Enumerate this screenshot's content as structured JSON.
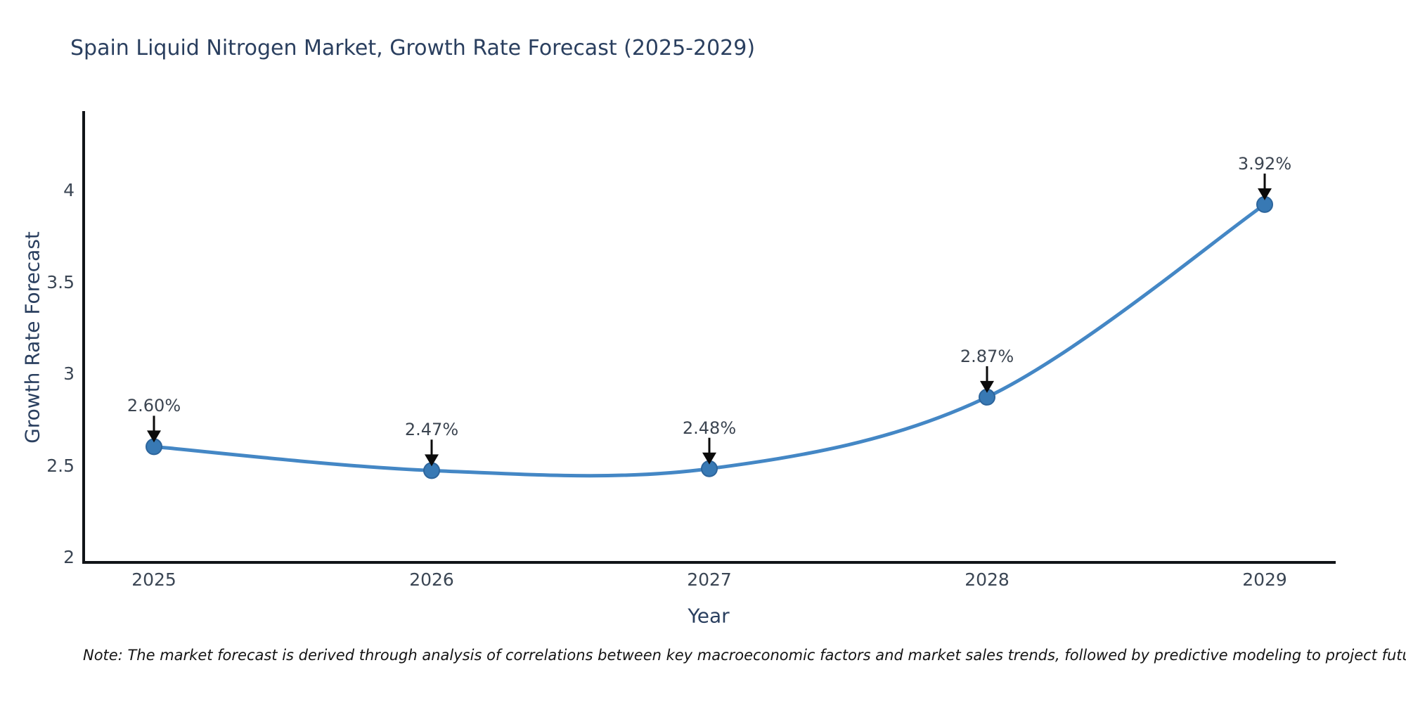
{
  "title": "Spain Liquid Nitrogen Market, Growth Rate Forecast (2025-2029)",
  "note": "Note: The market forecast is derived through analysis of correlations between key macroeconomic factors and market sales trends, followed by predictive modeling to project future sales",
  "chart_data": {
    "type": "line",
    "title": "Spain Liquid Nitrogen Market, Growth Rate Forecast (2025-2029)",
    "xlabel": "Year",
    "ylabel": "Growth Rate Forecast",
    "categories": [
      "2025",
      "2026",
      "2027",
      "2028",
      "2029"
    ],
    "series": [
      {
        "name": "Growth Rate Forecast",
        "values": [
          2.6,
          2.47,
          2.48,
          2.87,
          3.92
        ]
      }
    ],
    "point_labels": [
      "2.60%",
      "2.47%",
      "2.48%",
      "2.87%",
      "3.92%"
    ],
    "y_ticks": [
      2,
      2.5,
      3,
      3.5,
      4
    ],
    "ylim": [
      2,
      4.45
    ],
    "grid": false,
    "legend": false,
    "line_shape": "spline",
    "annotations_have_arrows": true,
    "colors": {
      "line": "#4487c5",
      "marker_fill": "#3879b4",
      "marker_edge": "#2d659c",
      "arrow": "#0b0b0b",
      "axis_line": "#111418",
      "title_text": "#2a3f5f",
      "tick_text": "#3b4654",
      "annotation_text": "#3c4551"
    }
  }
}
